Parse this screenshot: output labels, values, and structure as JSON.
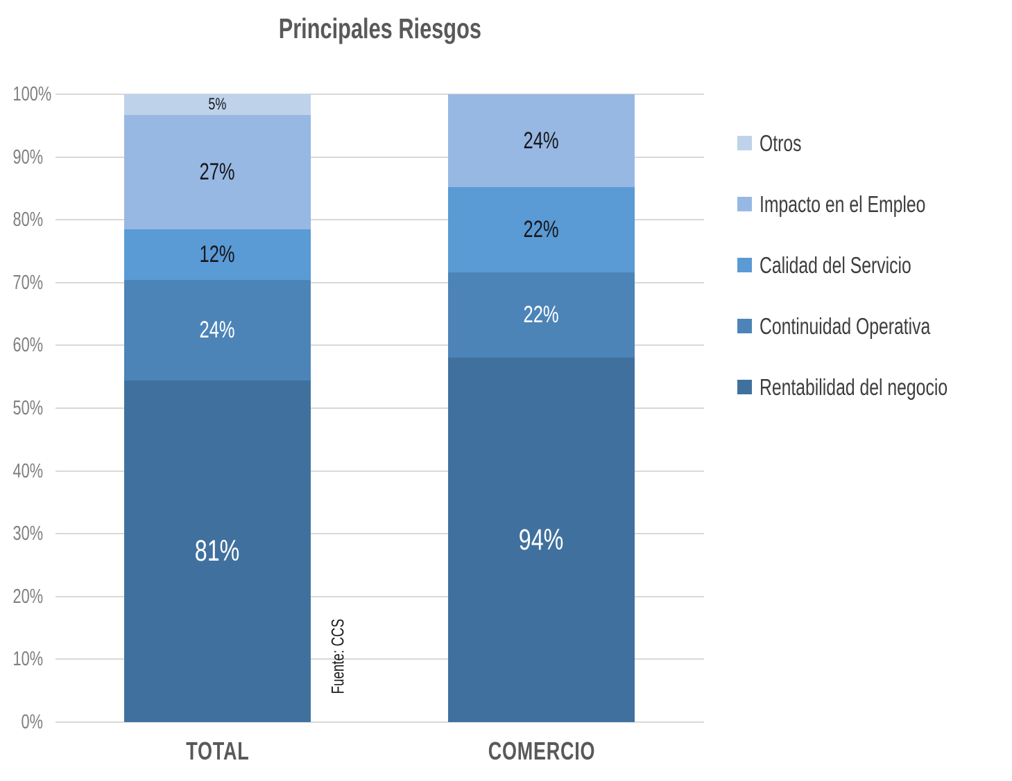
{
  "title": "Principales Riesgos",
  "source_note": "Fuente: CCS",
  "chart_data": {
    "type": "bar",
    "stacking": "percent-normalized",
    "title": "Principales Riesgos",
    "categories": [
      "TOTAL",
      "COMERCIO"
    ],
    "series": [
      {
        "name": "Otros",
        "color": "#BED2EA",
        "label_color": "#17171c",
        "values": [
          5,
          0
        ],
        "labels": [
          "5%",
          ""
        ]
      },
      {
        "name": "Impacto en el Empleo",
        "color": "#97B8E2",
        "label_color": "#17171c",
        "values": [
          27,
          24
        ],
        "labels": [
          "27%",
          "24%"
        ]
      },
      {
        "name": "Calidad del Servicio",
        "color": "#5A9AD5",
        "label_color": "#17171c",
        "values": [
          12,
          22
        ],
        "labels": [
          "12%",
          "22%"
        ]
      },
      {
        "name": "Continuidad Operativa",
        "color": "#4C84B8",
        "label_color": "#ffffff",
        "values": [
          24,
          22
        ],
        "labels": [
          "24%",
          "22%"
        ]
      },
      {
        "name": "Rentabilidad del negocio",
        "color": "#40719E",
        "label_color": "#ffffff",
        "values": [
          81,
          94
        ],
        "labels": [
          "81%",
          "94%"
        ]
      }
    ],
    "y_ticks": [
      "0%",
      "10%",
      "20%",
      "30%",
      "40%",
      "50%",
      "60%",
      "70%",
      "80%",
      "90%",
      "100%"
    ],
    "ylim": [
      0,
      100
    ],
    "grid": true,
    "legend_position": "right",
    "source": "Fuente: CCS",
    "note": "100% stacked bars; each bar's segment heights are value divided by the column sum (TOTAL sum = 149, COMERCIO sum = 162)"
  },
  "colors": {
    "background": "#FFFFFF",
    "gridline": "#D9D9D9",
    "title_text": "#595959",
    "axis_text": "#7F7F7F",
    "category_text": "#595959",
    "legend_text": "#3D3D3D"
  }
}
